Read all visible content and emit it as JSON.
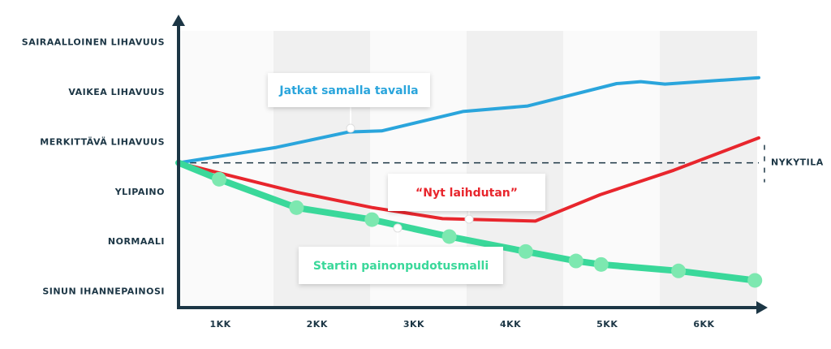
{
  "chart_data": {
    "type": "line",
    "xlim": [
      0,
      6
    ],
    "ylim": [
      -0.3,
      5.5
    ],
    "xticks": [
      {
        "value": 0.5,
        "label": "1KK"
      },
      {
        "value": 1.5,
        "label": "2KK"
      },
      {
        "value": 2.5,
        "label": "3KK"
      },
      {
        "value": 3.5,
        "label": "4KK"
      },
      {
        "value": 4.5,
        "label": "5KK"
      },
      {
        "value": 5.5,
        "label": "6KK"
      }
    ],
    "yticks": [
      {
        "value": 0,
        "label": "SINUN IHANNEPAINOSI"
      },
      {
        "value": 1,
        "label": "NORMAALI"
      },
      {
        "value": 2,
        "label": "YLIPAINO"
      },
      {
        "value": 3,
        "label": "MERKITTÄVÄ LIHAVUUS"
      },
      {
        "value": 4,
        "label": "VAIKEA LIHAVUUS"
      },
      {
        "value": 5,
        "label": "SAIRAALLOINEN LIHAVUUS"
      }
    ],
    "reference_line": {
      "value": 2.59,
      "label": "NYKYTILA"
    },
    "series": [
      {
        "name": "Jatkat samalla tavalla",
        "color": "#2aa5dc",
        "x": [
          0,
          1.01,
          1.76,
          2.1,
          2.94,
          3.61,
          4.53,
          4.78,
          5.03,
          6.0
        ],
        "values": [
          2.59,
          2.9,
          3.21,
          3.23,
          3.62,
          3.73,
          4.18,
          4.22,
          4.17,
          4.3
        ]
      },
      {
        "name": "“Nyt laihdutan”",
        "color": "#e8262d",
        "x": [
          0,
          1.22,
          2.01,
          2.73,
          3.69,
          4.36,
          5.12,
          6.0
        ],
        "values": [
          2.59,
          2.0,
          1.69,
          1.47,
          1.42,
          1.95,
          2.44,
          3.09
        ]
      },
      {
        "name": "Startin painonpudotusmalli",
        "color": "#3ad89a",
        "markers": true,
        "x": [
          0,
          0.42,
          1.22,
          2.0,
          2.8,
          3.59,
          4.11,
          4.37,
          5.17,
          5.96
        ],
        "values": [
          2.59,
          2.26,
          1.69,
          1.45,
          1.11,
          0.81,
          0.62,
          0.55,
          0.42,
          0.23
        ]
      }
    ]
  }
}
